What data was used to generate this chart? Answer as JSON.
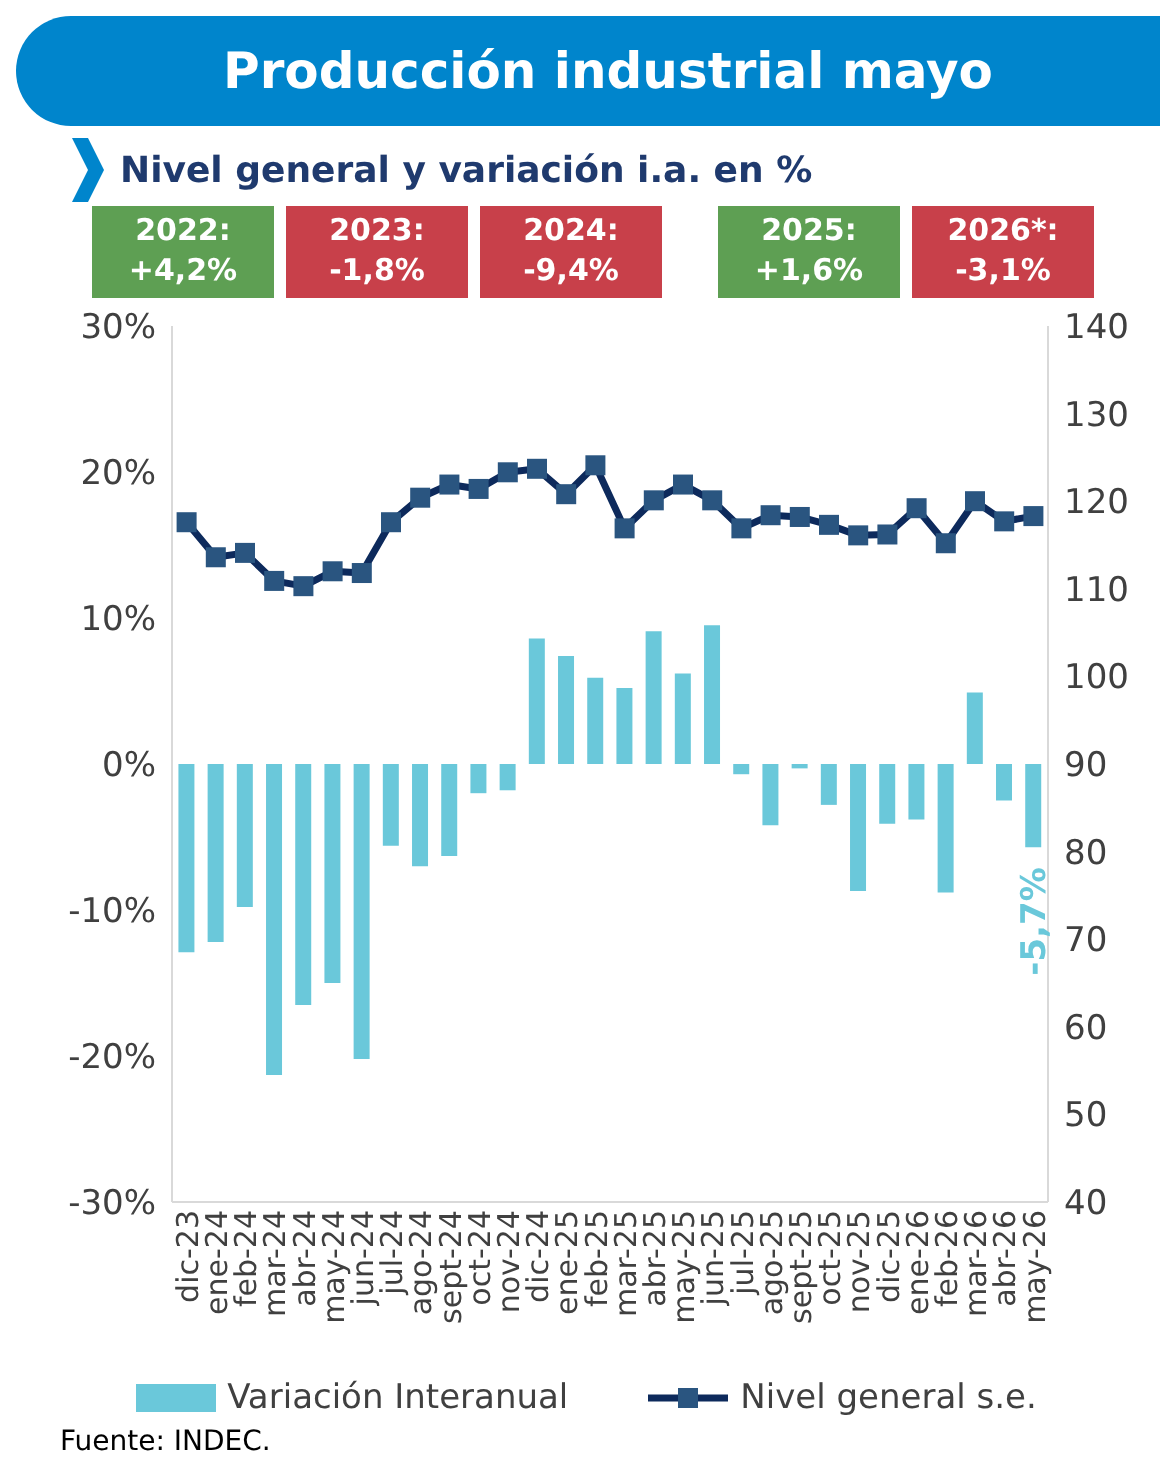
{
  "chart_data": {
    "type": "bar",
    "title": "Producción industrial mayo",
    "subtitle": "Nivel general y variación i.a. en %",
    "annotations": [
      "2022: +4,2%",
      "2023: -1,8%",
      "2024: -9,4%",
      "2025: +1,6%",
      "2026*: -3,1%",
      "Fuente: INDEC."
    ],
    "categories": [
      "dic-23",
      "ene-24",
      "feb-24",
      "mar-24",
      "abr-24",
      "may-24",
      "jun-24",
      "jul-24",
      "ago-24",
      "sept-24",
      "oct-24",
      "nov-24",
      "dic-24",
      "ene-25",
      "feb-25",
      "mar-25",
      "abr-25",
      "may-25",
      "jun-25",
      "jul-25",
      "ago-25",
      "sept-25",
      "oct-25",
      "nov-25",
      "dic-25",
      "ene-26",
      "feb-26",
      "mar-26",
      "abr-26",
      "may-26"
    ],
    "series": [
      {
        "name": "Variación Interanual",
        "color": "#6ac8da",
        "values": [
          -12.9,
          -12.2,
          -9.8,
          -21.3,
          -16.5,
          -15.0,
          -20.2,
          -5.6,
          -7.0,
          -6.3,
          -2.0,
          -1.8,
          8.6,
          7.4,
          5.9,
          5.2,
          9.1,
          6.2,
          9.5,
          -0.7,
          -4.2,
          -0.3,
          -2.8,
          -8.7,
          -4.1,
          -3.8,
          -8.8,
          4.9,
          -2.5,
          -5.7
        ],
        "value_labels": [
          null,
          null,
          null,
          null,
          null,
          null,
          null,
          null,
          null,
          null,
          null,
          null,
          null,
          null,
          null,
          null,
          null,
          null,
          null,
          null,
          null,
          null,
          null,
          null,
          null,
          null,
          null,
          null,
          null,
          "-5,7%"
        ]
      },
      {
        "name": "Nivel general s.e.",
        "type": "line",
        "axis": "y2",
        "color": "#0d2a5c",
        "marker": "square",
        "values": [
          117.6,
          113.6,
          114.1,
          110.9,
          110.3,
          112.0,
          111.8,
          117.6,
          120.4,
          121.9,
          121.4,
          123.3,
          123.7,
          120.8,
          124.1,
          116.9,
          120.1,
          121.9,
          120.1,
          116.9,
          118.4,
          118.2,
          117.3,
          116.1,
          116.2,
          119.2,
          115.2,
          120.0,
          117.7,
          118.3
        ]
      }
    ],
    "ylim": [
      -30,
      30
    ],
    "yticks": [
      {
        "value": -30,
        "label": "-30%"
      },
      {
        "value": -20,
        "label": "-20%"
      },
      {
        "value": -10,
        "label": "-10%"
      },
      {
        "value": 0,
        "label": "0%"
      },
      {
        "value": 10,
        "label": "10%"
      },
      {
        "value": 20,
        "label": "20%"
      },
      {
        "value": 30,
        "label": "30%"
      }
    ],
    "y2lim": [
      40,
      140
    ],
    "y2ticks": [
      40,
      50,
      60,
      70,
      80,
      90,
      100,
      110,
      120,
      130,
      140
    ],
    "legend": "bottom"
  }
}
